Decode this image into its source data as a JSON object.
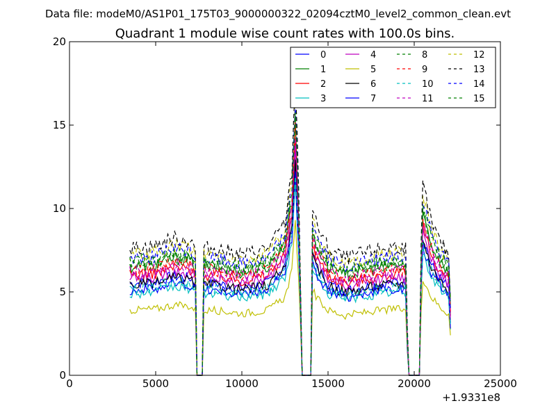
{
  "chart_data": {
    "type": "line",
    "suptitle": "Data file: modeM0/AS1P01_175T03_9000000322_02094cztM0_level2_common_clean.evt",
    "title": "Quadrant 1 module wise count rates with 100.0s bins.",
    "xlabel": "",
    "ylabel": "",
    "x_offset_label": "+1.9331e8",
    "xlim": [
      0,
      25000
    ],
    "ylim": [
      0,
      20
    ],
    "xticks": [
      0,
      5000,
      10000,
      15000,
      20000,
      25000
    ],
    "yticks": [
      0,
      5,
      10,
      15,
      20
    ],
    "xtick_labels": [
      "0",
      "5000",
      "10000",
      "15000",
      "20000",
      "25000"
    ],
    "ytick_labels": [
      "0",
      "5",
      "10",
      "15",
      "20"
    ],
    "legend_position": "upper-right",
    "legend_columns": 4,
    "time_profile": {
      "x": [
        3500,
        5000,
        6000,
        7000,
        7300,
        7400,
        7700,
        7800,
        8500,
        10000,
        11500,
        12500,
        12900,
        13100,
        13300,
        13500,
        13600,
        14000,
        14100,
        14300,
        15000,
        16000,
        17500,
        19000,
        19500,
        19650,
        19700,
        20300,
        20400,
        20500,
        21000,
        21500,
        22000,
        22100
      ],
      "shape": [
        1.0,
        1.02,
        1.08,
        1.06,
        1.0,
        0.0,
        0.0,
        1.0,
        1.0,
        0.95,
        1.0,
        1.2,
        1.6,
        2.35,
        1.5,
        0.0,
        0.0,
        0.0,
        1.32,
        1.2,
        1.0,
        0.92,
        0.98,
        1.02,
        1.0,
        0.0,
        0.0,
        0.0,
        1.0,
        1.5,
        1.2,
        1.05,
        0.95,
        0.6
      ]
    },
    "series": [
      {
        "name": "0",
        "color": "#0000ff",
        "style": "solid",
        "level": 5.5
      },
      {
        "name": "1",
        "color": "#008000",
        "style": "solid",
        "level": 6.5
      },
      {
        "name": "2",
        "color": "#ff0000",
        "style": "solid",
        "level": 6.0
      },
      {
        "name": "3",
        "color": "#00bfbf",
        "style": "solid",
        "level": 4.9
      },
      {
        "name": "4",
        "color": "#bf00bf",
        "style": "solid",
        "level": 5.8
      },
      {
        "name": "5",
        "color": "#bfbf00",
        "style": "solid",
        "level": 3.9
      },
      {
        "name": "6",
        "color": "#000000",
        "style": "solid",
        "level": 5.4
      },
      {
        "name": "7",
        "color": "#0000ff",
        "style": "solid",
        "level": 5.1
      },
      {
        "name": "8",
        "color": "#008000",
        "style": "dashed",
        "level": 6.6
      },
      {
        "name": "9",
        "color": "#ff0000",
        "style": "dashed",
        "level": 6.3
      },
      {
        "name": "10",
        "color": "#00bfbf",
        "style": "dashed",
        "level": 5.2
      },
      {
        "name": "11",
        "color": "#bf00bf",
        "style": "dashed",
        "level": 6.2
      },
      {
        "name": "12",
        "color": "#bfbf00",
        "style": "dashed",
        "level": 7.2
      },
      {
        "name": "13",
        "color": "#000000",
        "style": "dashed",
        "level": 7.6
      },
      {
        "name": "14",
        "color": "#0000ff",
        "style": "dashed",
        "level": 7.0
      },
      {
        "name": "15",
        "color": "#008000",
        "style": "dashed",
        "level": 6.8
      }
    ]
  }
}
